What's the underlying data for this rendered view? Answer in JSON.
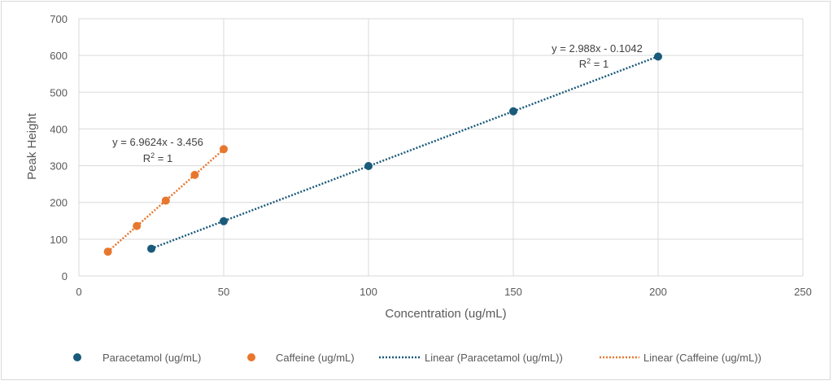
{
  "chart_data": {
    "type": "scatter",
    "title": "",
    "xlabel": "Concentration (ug/mL)",
    "ylabel": "Peak Height",
    "xlim": [
      0,
      250
    ],
    "ylim": [
      0,
      700
    ],
    "xticks": [
      "0",
      "50",
      "100",
      "150",
      "200",
      "250"
    ],
    "yticks": [
      "0",
      "100",
      "200",
      "300",
      "400",
      "500",
      "600",
      "700"
    ],
    "grid": true,
    "legend_position": "bottom",
    "series": [
      {
        "name": "Paracetamol (ug/mL)",
        "color": "#1a5a7a",
        "x": [
          25,
          50,
          100,
          150,
          200
        ],
        "y": [
          74,
          149,
          299,
          448,
          597
        ],
        "trendline": {
          "name": "Linear (Paracetamol (ug/mL))",
          "slope": 2.988,
          "intercept": -0.1042,
          "equation": "y = 2.988x - 0.1042",
          "r2_prefix": "R",
          "r2_suffix": " = 1"
        }
      },
      {
        "name": "Caffeine (ug/mL)",
        "color": "#e8772e",
        "x": [
          10,
          20,
          30,
          40,
          50
        ],
        "y": [
          66,
          136,
          205,
          275,
          345
        ],
        "trendline": {
          "name": "Linear (Caffeine (ug/mL))",
          "slope": 6.9624,
          "intercept": -3.456,
          "equation": "y = 6.9624x - 3.456",
          "r2_prefix": "R",
          "r2_suffix": " = 1"
        }
      }
    ]
  }
}
